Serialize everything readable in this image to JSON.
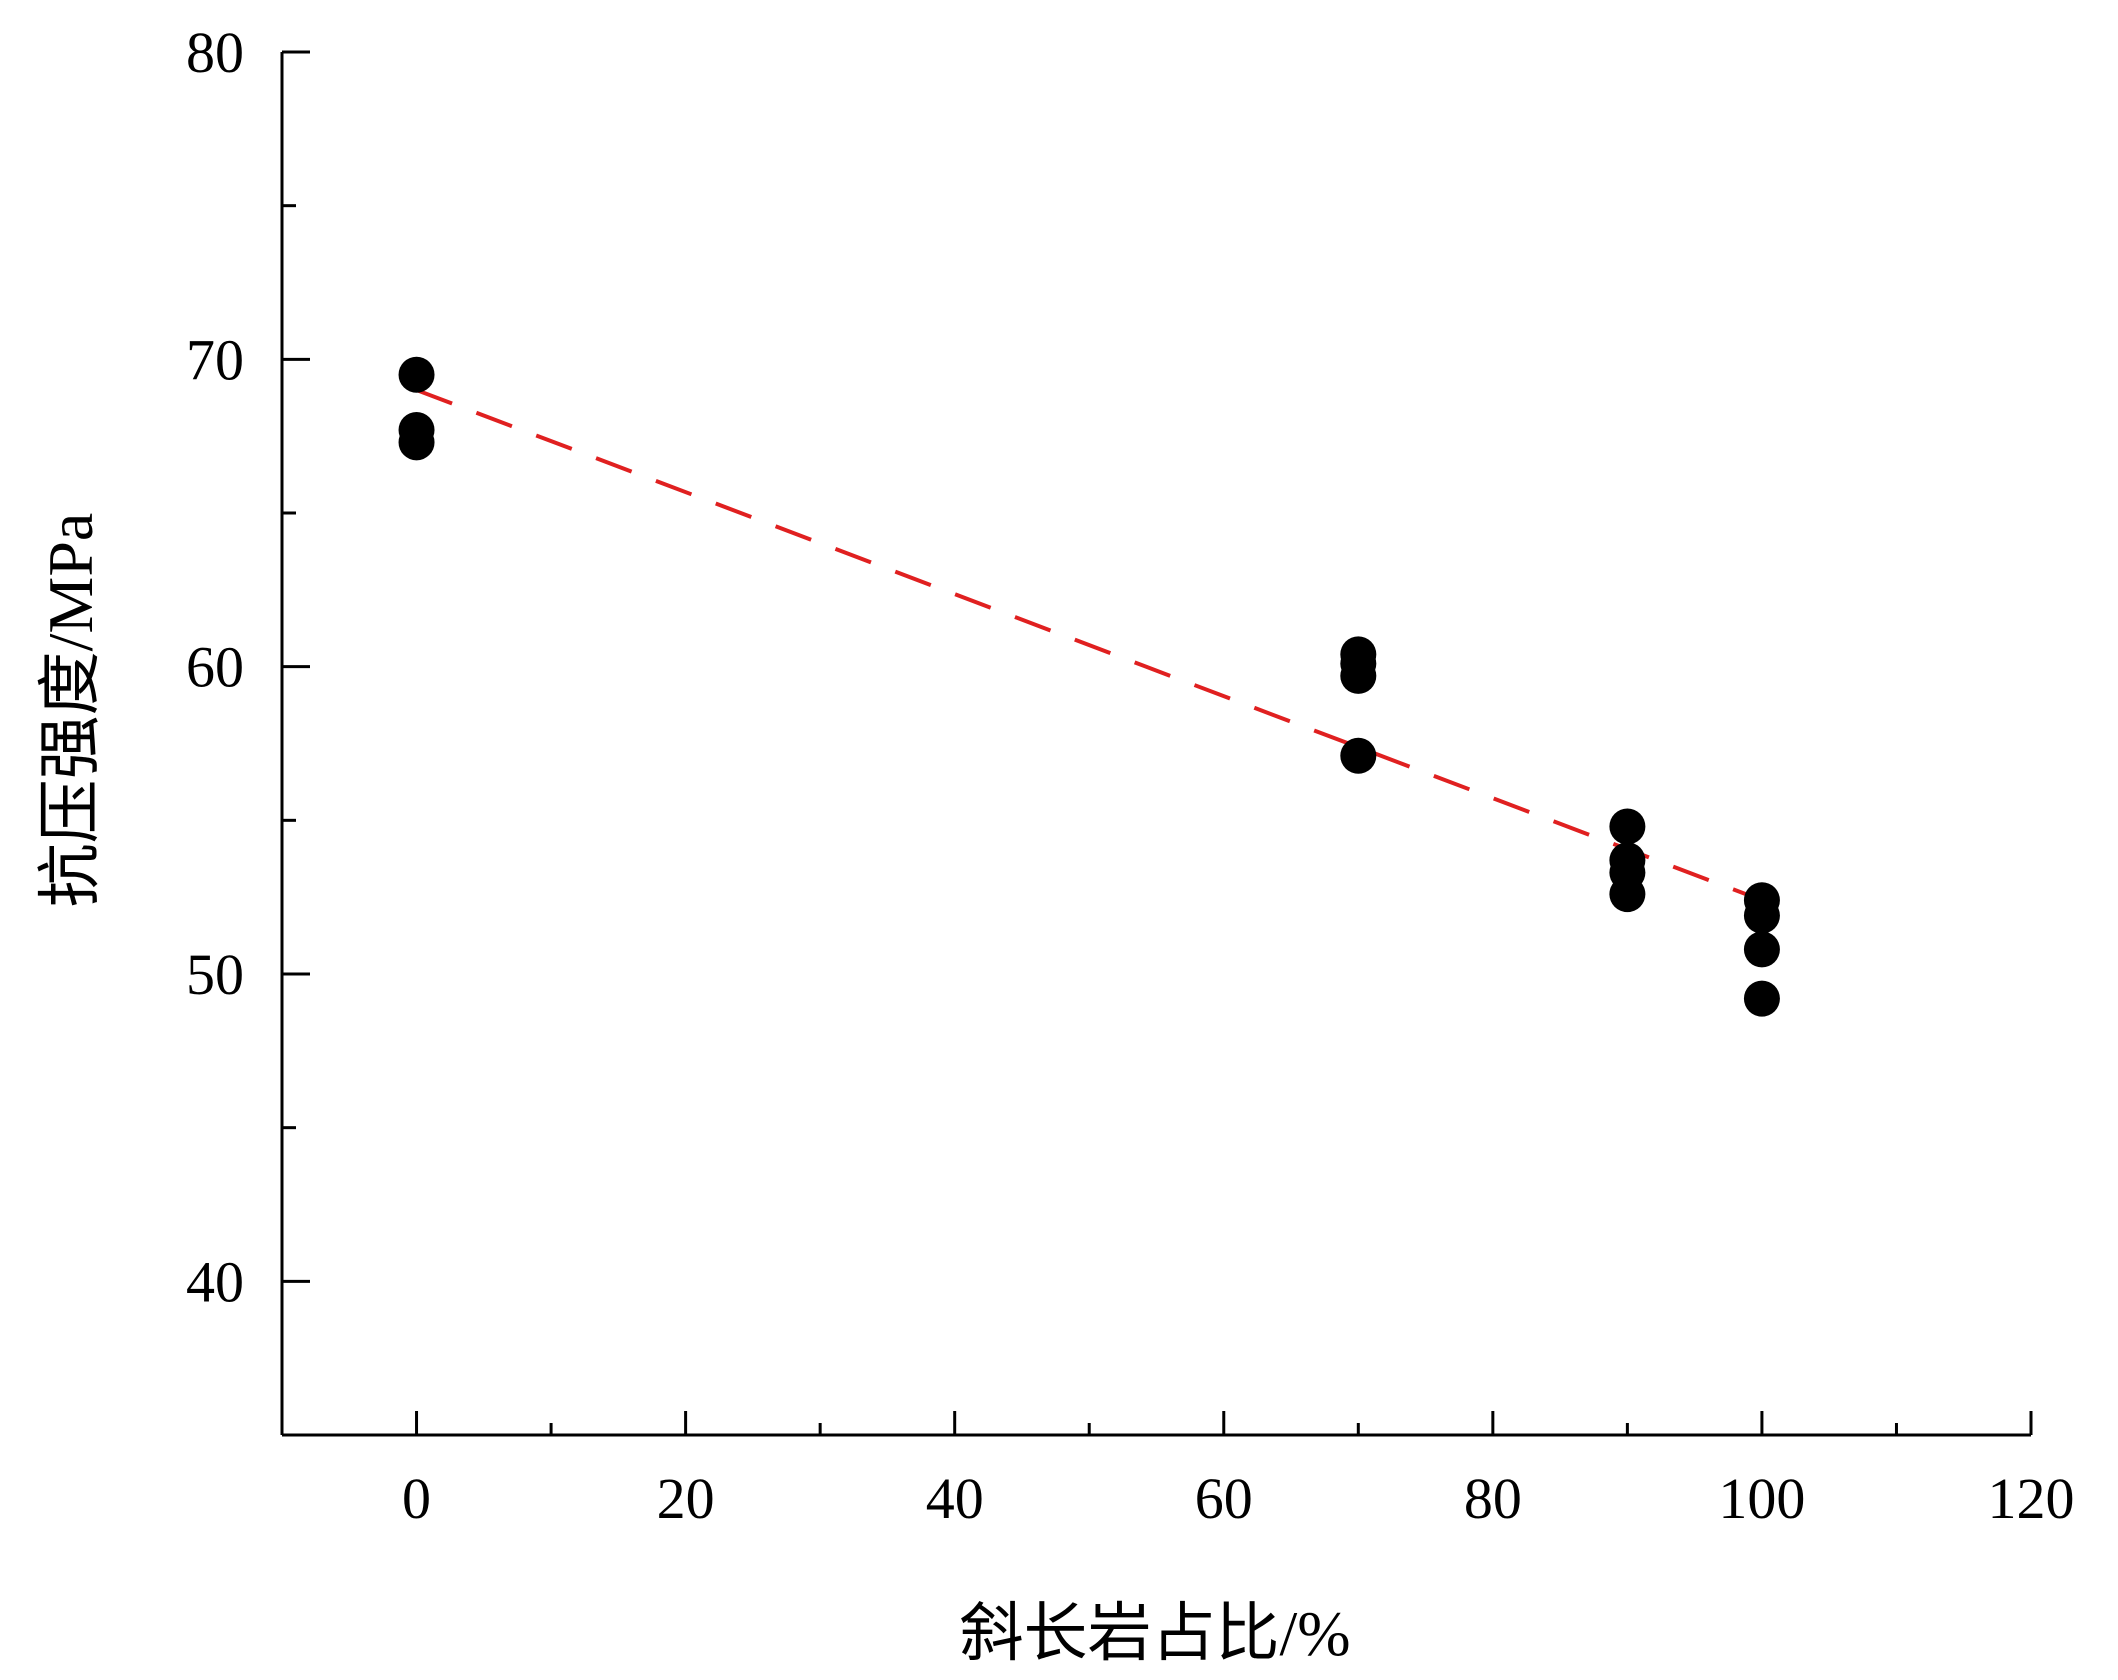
{
  "chart_data": {
    "type": "scatter",
    "title": "",
    "xlabel": "斜长岩占比/%",
    "ylabel": "抗压强度/MPa",
    "xlim": [
      -10,
      120
    ],
    "ylim": [
      35,
      80
    ],
    "x_ticks": [
      0,
      20,
      40,
      60,
      80,
      100,
      120
    ],
    "y_ticks": [
      40,
      50,
      60,
      70,
      80
    ],
    "grid": false,
    "series": [
      {
        "type": "scatter",
        "color": "#000000",
        "points": [
          {
            "x": 0,
            "y": 69.5
          },
          {
            "x": 0,
            "y": 67.7
          },
          {
            "x": 0,
            "y": 67.3
          },
          {
            "x": 70,
            "y": 60.4
          },
          {
            "x": 70,
            "y": 60.1
          },
          {
            "x": 70,
            "y": 59.7
          },
          {
            "x": 70,
            "y": 57.1
          },
          {
            "x": 90,
            "y": 54.8
          },
          {
            "x": 90,
            "y": 53.7
          },
          {
            "x": 90,
            "y": 53.3
          },
          {
            "x": 90,
            "y": 52.6
          },
          {
            "x": 100,
            "y": 52.4
          },
          {
            "x": 100,
            "y": 51.9
          },
          {
            "x": 100,
            "y": 50.8
          },
          {
            "x": 100,
            "y": 49.2
          }
        ]
      },
      {
        "type": "line",
        "style": "dashed",
        "color": "#e02020",
        "points": [
          {
            "x": 0,
            "y": 69.0
          },
          {
            "x": 100,
            "y": 52.4
          }
        ]
      }
    ]
  }
}
